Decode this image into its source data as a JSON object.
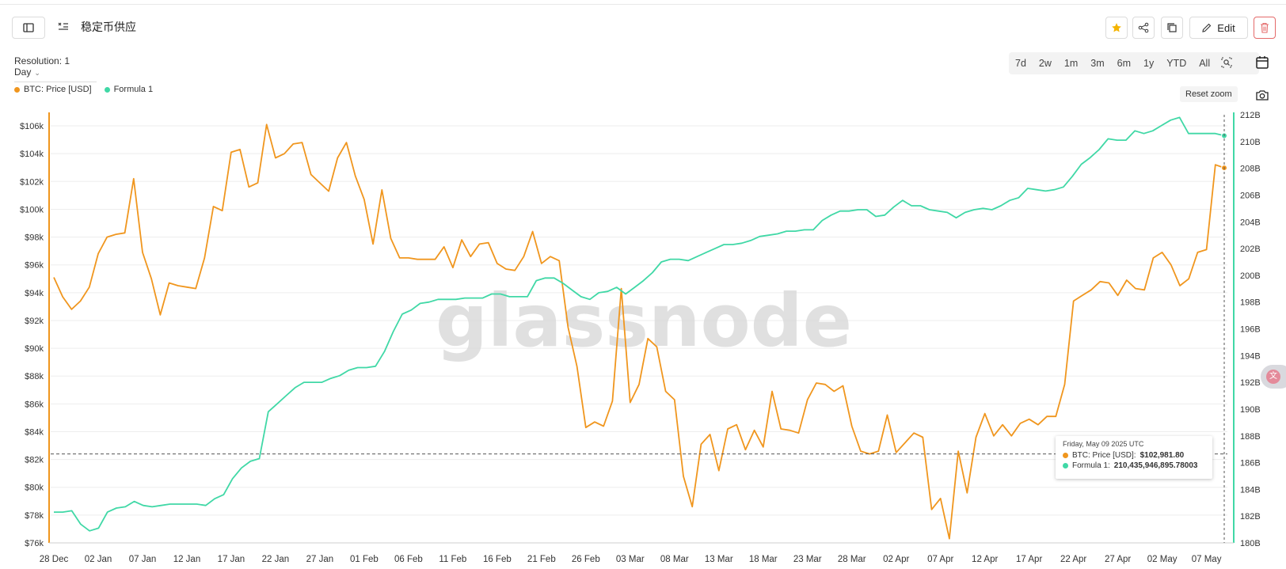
{
  "header": {
    "title": "稳定币供应",
    "edit_label": "Edit",
    "resolution_label": "Resolution: 1 Day"
  },
  "time_ranges": [
    "7d",
    "2w",
    "1m",
    "3m",
    "6m",
    "1y",
    "YTD",
    "All"
  ],
  "reset_zoom_label": "Reset zoom",
  "legend": {
    "btc_label": "BTC: Price [USD]",
    "formula_label": "Formula 1"
  },
  "colors": {
    "btc": "#f0961e",
    "formula": "#40d8a6",
    "star": "#f4b400",
    "delete": "#e46a6a"
  },
  "watermark": "glassnode",
  "tooltip": {
    "date": "Friday, May 09 2025 UTC",
    "btc_label": "BTC: Price [USD]:",
    "btc_value": "$102,981.80",
    "formula_label": "Formula 1:",
    "formula_value": "210,435,946,895.78003"
  },
  "icons": {
    "sidebar": "sidebar-toggle-icon",
    "title": "formula-list-icon",
    "star": "star-icon",
    "share": "share-icon",
    "copy": "copy-icon",
    "edit": "pencil-icon",
    "delete": "trash-icon",
    "zoom": "zoom-search-icon",
    "calendar": "calendar-icon",
    "camera": "camera-icon"
  },
  "chart_data": {
    "type": "line",
    "x_tick_labels": [
      "28 Dec",
      "02 Jan",
      "07 Jan",
      "12 Jan",
      "17 Jan",
      "22 Jan",
      "27 Jan",
      "01 Feb",
      "06 Feb",
      "11 Feb",
      "16 Feb",
      "21 Feb",
      "26 Feb",
      "03 Mar",
      "08 Mar",
      "13 Mar",
      "18 Mar",
      "23 Mar",
      "28 Mar",
      "02 Apr",
      "07 Apr",
      "12 Apr",
      "17 Apr",
      "22 Apr",
      "27 Apr",
      "02 May",
      "07 May"
    ],
    "y_left_ticks": [
      "$76k",
      "$78k",
      "$80k",
      "$82k",
      "$84k",
      "$86k",
      "$88k",
      "$90k",
      "$92k",
      "$94k",
      "$96k",
      "$98k",
      "$100k",
      "$102k",
      "$104k",
      "$106k"
    ],
    "y_right_ticks": [
      "180B",
      "182B",
      "184B",
      "186B",
      "188B",
      "190B",
      "192B",
      "194B",
      "196B",
      "198B",
      "200B",
      "202B",
      "204B",
      "206B",
      "208B",
      "210B",
      "212B"
    ],
    "y_left_range": [
      76000,
      106800
    ],
    "y_right_range": [
      180000000000,
      212000000000
    ],
    "x_range": [
      "2024-12-28",
      "2025-05-09"
    ],
    "grid": true,
    "series": [
      {
        "name": "BTC: Price [USD]",
        "axis": "left",
        "values": [
          95100,
          93700,
          92800,
          93400,
          94400,
          96800,
          98000,
          98200,
          98300,
          102200,
          96900,
          95000,
          92400,
          94700,
          94500,
          94400,
          94300,
          96500,
          100200,
          99900,
          104100,
          104300,
          101600,
          101900,
          106100,
          103700,
          104000,
          104700,
          104800,
          102500,
          101900,
          101300,
          103700,
          104800,
          102400,
          100700,
          97500,
          101400,
          97900,
          96500,
          96500,
          96400,
          96400,
          96400,
          97300,
          95800,
          97800,
          96600,
          97500,
          97600,
          96100,
          95700,
          95600,
          96600,
          98400,
          96100,
          96600,
          96300,
          91500,
          88700,
          84300,
          84700,
          84400,
          86200,
          94300,
          86100,
          87400,
          90700,
          90100,
          86900,
          86300,
          80800,
          78600,
          83100,
          83800,
          81200,
          84200,
          84500,
          82700,
          84100,
          82900,
          86900,
          84200,
          84100,
          83900,
          86300,
          87500,
          87400,
          86900,
          87300,
          84400,
          82600,
          82400,
          82600,
          85200,
          82500,
          83200,
          83900,
          83600,
          78400,
          79200,
          76300,
          82600,
          79600,
          83600,
          85300,
          83700,
          84500,
          83700,
          84600,
          84900,
          84500,
          85100,
          85100,
          87400,
          93400,
          93800,
          94200,
          94800,
          94700,
          93800,
          94900,
          94300,
          94200,
          96500,
          96900,
          96000,
          94500,
          95000,
          96900,
          97100,
          103200,
          102982
        ]
      },
      {
        "name": "Formula 1",
        "axis": "right",
        "values": [
          182300,
          182300,
          182400,
          181400,
          180900,
          181100,
          182300,
          182600,
          182700,
          183100,
          182800,
          182700,
          182800,
          182900,
          182900,
          182900,
          182900,
          182800,
          183300,
          183600,
          184800,
          185600,
          186100,
          186300,
          189800,
          190400,
          191000,
          191600,
          192000,
          192000,
          192000,
          192300,
          192500,
          192900,
          193100,
          193100,
          193200,
          194300,
          195800,
          197100,
          197400,
          197900,
          198000,
          198200,
          198200,
          198200,
          198300,
          198300,
          198300,
          198600,
          198600,
          198400,
          198400,
          198400,
          199600,
          199800,
          199800,
          199400,
          198900,
          198400,
          198200,
          198700,
          198800,
          199100,
          198600,
          199100,
          199600,
          200200,
          201000,
          201200,
          201200,
          201100,
          201400,
          201700,
          202000,
          202300,
          202300,
          202400,
          202600,
          202900,
          203000,
          203100,
          203300,
          203300,
          203400,
          203400,
          204100,
          204500,
          204800,
          204800,
          204900,
          204900,
          204400,
          204500,
          205100,
          205600,
          205200,
          205200,
          204900,
          204800,
          204700,
          204300,
          204700,
          204900,
          205000,
          204900,
          205200,
          205600,
          205800,
          206500,
          206400,
          206300,
          206400,
          206600,
          207400,
          208300,
          208800,
          209400,
          210200,
          210100,
          210100,
          210800,
          210600,
          210800,
          211200,
          211600,
          211800,
          210600,
          210600,
          210600,
          210600,
          210436
        ]
      }
    ]
  }
}
